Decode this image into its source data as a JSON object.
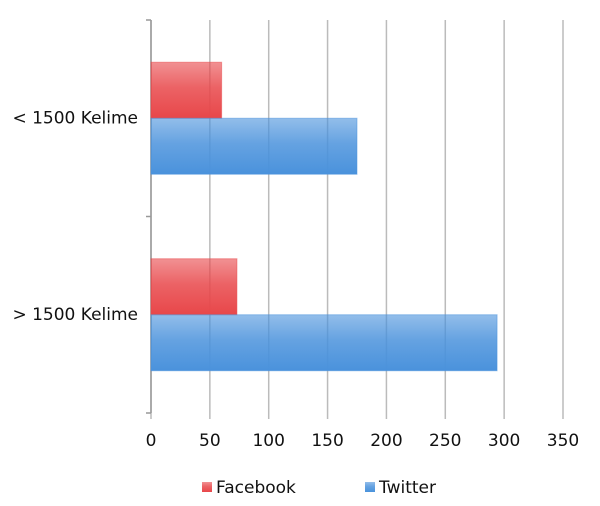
{
  "chart_data": {
    "type": "hbar",
    "categories": [
      "< 1500 Kelime",
      "> 1500 Kelime"
    ],
    "series": [
      {
        "name": "Facebook",
        "color": "#e8474a",
        "values": [
          60,
          73
        ]
      },
      {
        "name": "Twitter",
        "color": "#4a92dc",
        "values": [
          175,
          294
        ]
      }
    ],
    "xlim": [
      0,
      350
    ],
    "xticks": [
      0,
      50,
      100,
      150,
      200,
      250,
      300,
      350
    ],
    "grid": true,
    "legend": "bottom"
  }
}
